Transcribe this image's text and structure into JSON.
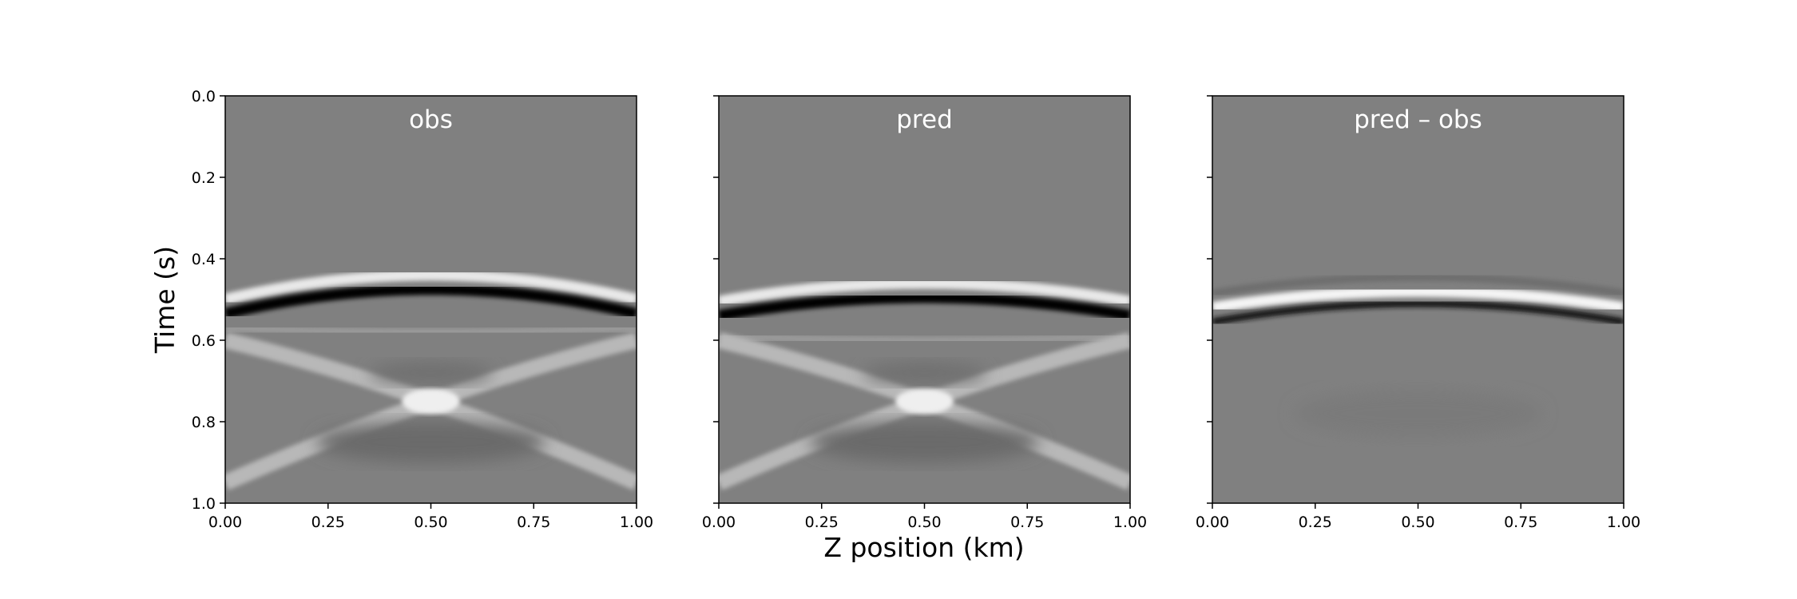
{
  "figure": {
    "xlabel": "Z position (km)",
    "ylabel": "Time (s)"
  },
  "chart_data": [
    {
      "type": "heatmap",
      "title": "obs",
      "colormap": "gray",
      "xlim": [
        0.0,
        1.0
      ],
      "ylim": [
        1.0,
        0.0
      ],
      "xticks": [
        "0.00",
        "0.25",
        "0.50",
        "0.75",
        "1.00"
      ],
      "yticks": [
        "0.0",
        "0.2",
        "0.4",
        "0.6",
        "0.8",
        "1.0"
      ],
      "show_ytick_labels": true,
      "events": {
        "direct_apex_time": 0.47,
        "direct_edge_time": 0.53,
        "multiple_apex_time": 0.58,
        "crossing_point": [
          0.5,
          0.75
        ],
        "bright_spot_time": 0.75
      }
    },
    {
      "type": "heatmap",
      "title": "pred",
      "colormap": "gray",
      "xlim": [
        0.0,
        1.0
      ],
      "ylim": [
        1.0,
        0.0
      ],
      "xticks": [
        "0.00",
        "0.25",
        "0.50",
        "0.75",
        "1.00"
      ],
      "yticks": [
        "0.0",
        "0.2",
        "0.4",
        "0.6",
        "0.8",
        "1.0"
      ],
      "show_ytick_labels": false,
      "events": {
        "direct_apex_time": 0.49,
        "direct_edge_time": 0.535,
        "multiple_apex_time": 0.6,
        "crossing_point": [
          0.5,
          0.75
        ],
        "bright_spot_time": 0.75
      }
    },
    {
      "type": "heatmap",
      "title": "pred – obs",
      "colormap": "gray",
      "xlim": [
        0.0,
        1.0
      ],
      "ylim": [
        1.0,
        0.0
      ],
      "xticks": [
        "0.00",
        "0.25",
        "0.50",
        "0.75",
        "1.00"
      ],
      "yticks": [
        "0.0",
        "0.2",
        "0.4",
        "0.6",
        "0.8",
        "1.0"
      ],
      "show_ytick_labels": false,
      "events": {
        "residual_apex_time": 0.48,
        "residual_edge_time": 0.52
      }
    }
  ]
}
